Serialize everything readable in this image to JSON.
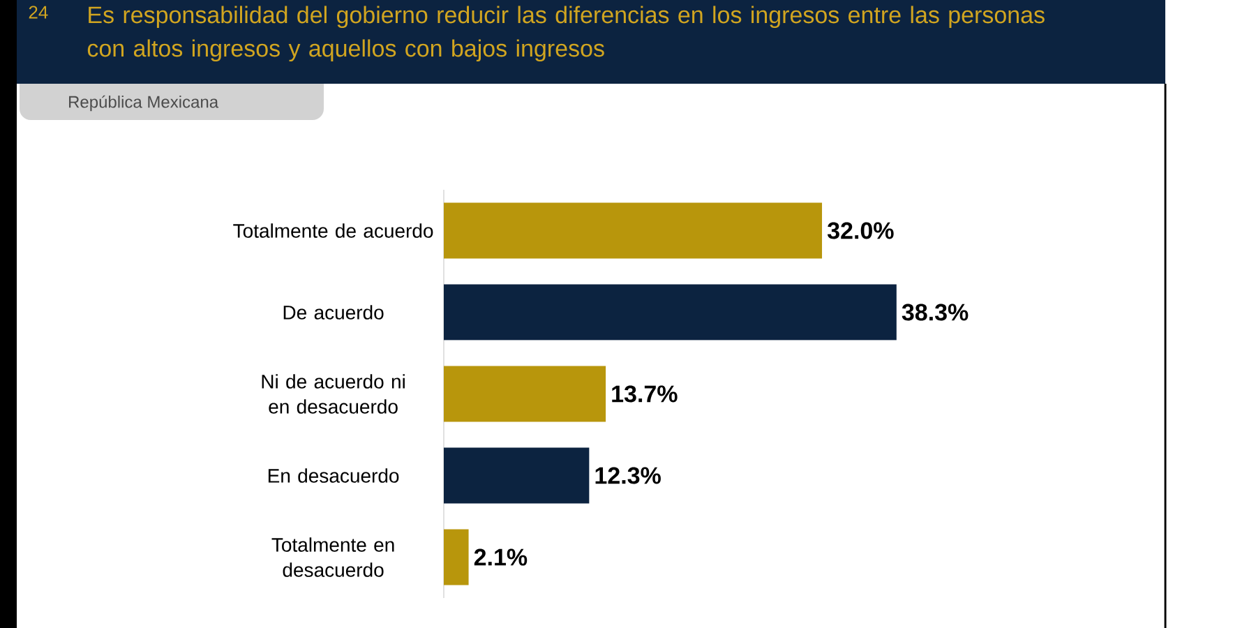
{
  "chart_data": {
    "type": "bar",
    "orientation": "horizontal",
    "title": "Es responsabilidad del gobierno reducir las diferencias en los ingresos entre las personas con altos ingresos y aquellos con bajos ingresos",
    "subtitle": "República Mexicana",
    "annotations": [
      "24"
    ],
    "categories": [
      "Totalmente de acuerdo",
      "De acuerdo",
      "Ni de acuerdo ni en desacuerdo",
      "En desacuerdo",
      "Totalmente en desacuerdo"
    ],
    "values": [
      32.0,
      38.3,
      13.7,
      12.3,
      2.1
    ],
    "value_labels": [
      "32.0%",
      "38.3%",
      "13.7%",
      "12.3%",
      "2.1%"
    ],
    "colors": [
      "#b8960c",
      "#0c2340",
      "#b8960c",
      "#0c2340",
      "#b8960c"
    ]
  }
}
